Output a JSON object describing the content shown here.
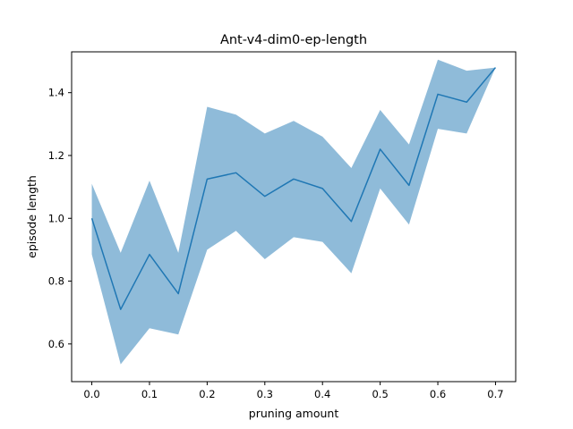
{
  "chart_data": {
    "type": "line",
    "title": "Ant-v4-dim0-ep-length",
    "xlabel": "pruning amount",
    "ylabel": "episode length",
    "xlim": [
      -0.035,
      0.735
    ],
    "ylim": [
      0.48,
      1.53
    ],
    "xticks": [
      0.0,
      0.1,
      0.2,
      0.3,
      0.4,
      0.5,
      0.6,
      0.7
    ],
    "xtick_labels": [
      "0.0",
      "0.1",
      "0.2",
      "0.3",
      "0.4",
      "0.5",
      "0.6",
      "0.7"
    ],
    "yticks": [
      0.6,
      0.8,
      1.0,
      1.2,
      1.4
    ],
    "ytick_labels": [
      "0.6",
      "0.8",
      "1.0",
      "1.2",
      "1.4"
    ],
    "grid": false,
    "x": [
      0.0,
      0.05,
      0.1,
      0.15,
      0.2,
      0.25,
      0.3,
      0.35,
      0.4,
      0.45,
      0.5,
      0.55,
      0.6,
      0.65,
      0.7
    ],
    "series": [
      {
        "values": [
          1.0,
          0.71,
          0.885,
          0.76,
          1.125,
          1.145,
          1.07,
          1.125,
          1.095,
          0.99,
          1.22,
          1.105,
          1.395,
          1.37,
          1.48
        ],
        "lower": [
          0.885,
          0.535,
          0.65,
          0.63,
          0.9,
          0.96,
          0.87,
          0.94,
          0.925,
          0.825,
          1.095,
          0.98,
          1.285,
          1.27,
          1.48
        ],
        "upper": [
          1.11,
          0.89,
          1.12,
          0.89,
          1.355,
          1.33,
          1.27,
          1.31,
          1.26,
          1.16,
          1.345,
          1.235,
          1.505,
          1.47,
          1.48
        ],
        "color": "#1f77b4",
        "band_color": "#1f77b4",
        "band_opacity": 0.5
      }
    ]
  }
}
